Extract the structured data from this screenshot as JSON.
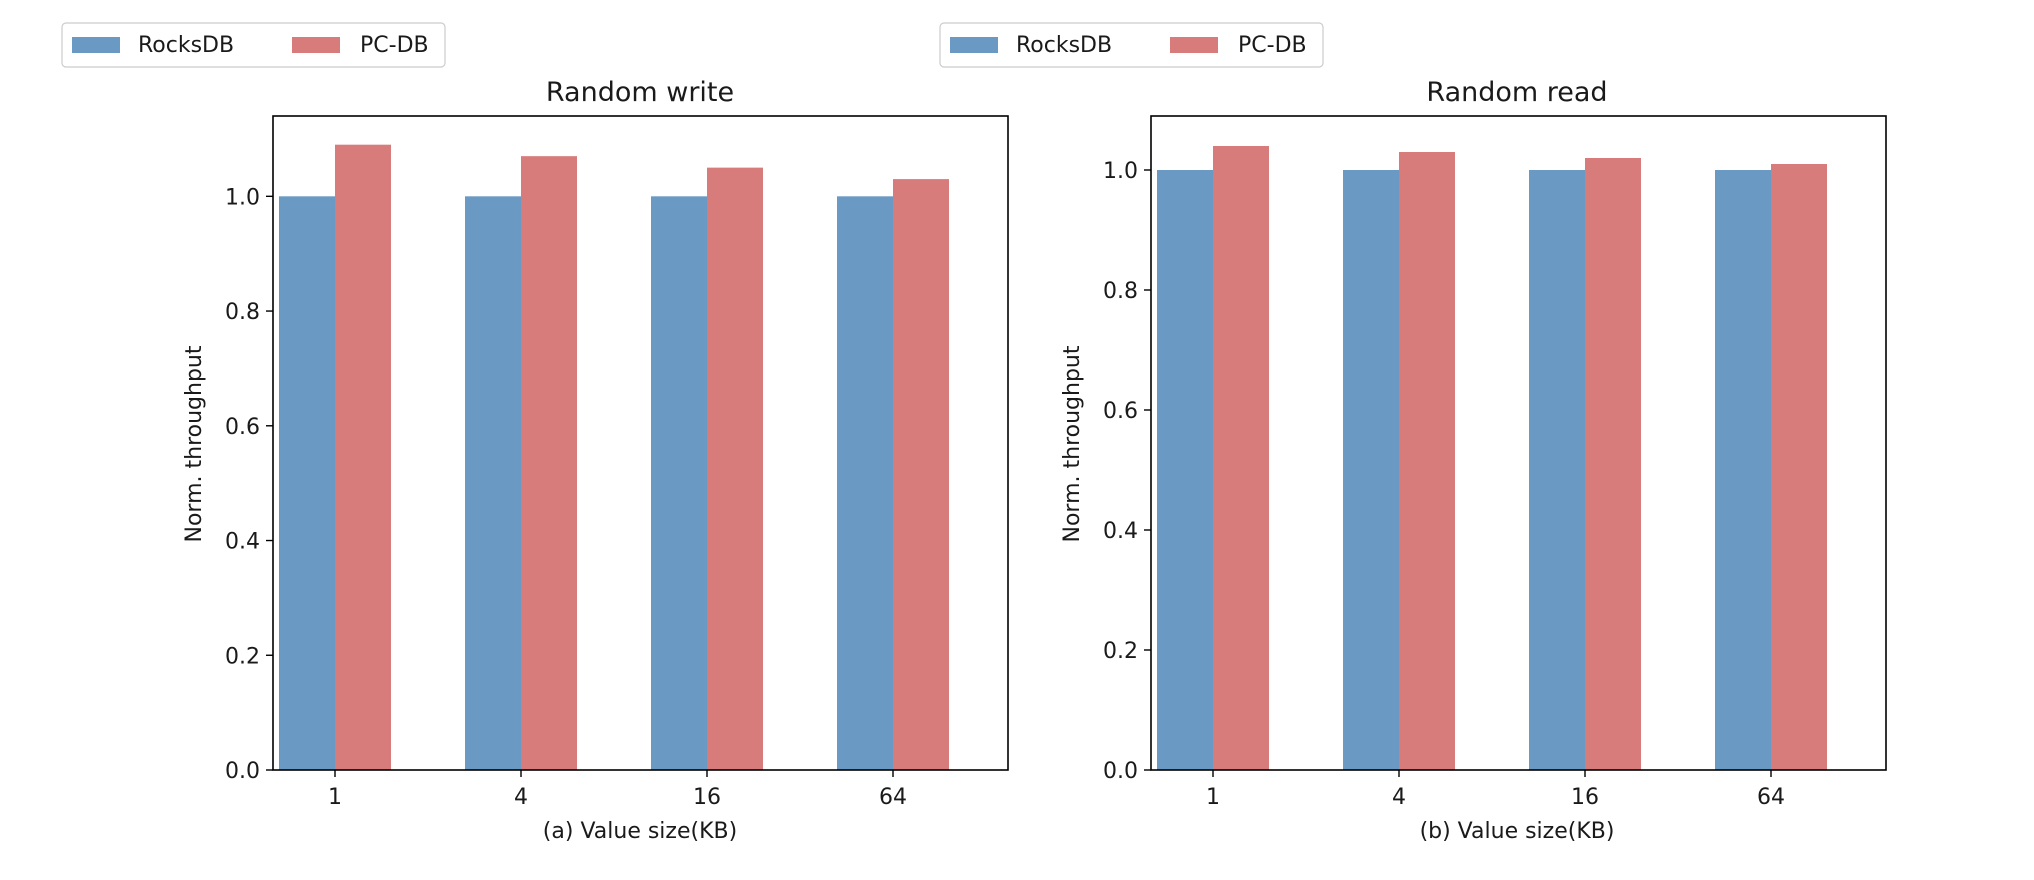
{
  "colors": {
    "rocksdb": "#6a9ac4",
    "pcdb": "#d77b7b",
    "axis": "#000000"
  },
  "chart_data": [
    {
      "type": "bar",
      "title": "Random write",
      "xlabel": "(a) Value size(KB)",
      "ylabel": "Norm. throughput",
      "categories": [
        "1",
        "4",
        "16",
        "64"
      ],
      "ylim": [
        0,
        1.14
      ],
      "yticks": [
        0.0,
        0.2,
        0.4,
        0.6,
        0.8,
        1.0
      ],
      "legend": {
        "placement": "top-left",
        "entries": [
          "RocksDB",
          "PC-DB"
        ]
      },
      "grid": false,
      "series": [
        {
          "name": "RocksDB",
          "values": [
            1.0,
            1.0,
            1.0,
            1.0
          ]
        },
        {
          "name": "PC-DB",
          "values": [
            1.09,
            1.07,
            1.05,
            1.03
          ]
        }
      ]
    },
    {
      "type": "bar",
      "title": "Random read",
      "xlabel": "(b) Value size(KB)",
      "ylabel": "Norm. throughput",
      "categories": [
        "1",
        "4",
        "16",
        "64"
      ],
      "ylim": [
        0,
        1.09
      ],
      "yticks": [
        0.0,
        0.2,
        0.4,
        0.6,
        0.8,
        1.0
      ],
      "legend": {
        "placement": "top-left",
        "entries": [
          "RocksDB",
          "PC-DB"
        ]
      },
      "grid": false,
      "series": [
        {
          "name": "RocksDB",
          "values": [
            1.0,
            1.0,
            1.0,
            1.0
          ]
        },
        {
          "name": "PC-DB",
          "values": [
            1.04,
            1.03,
            1.02,
            1.01
          ]
        }
      ]
    }
  ]
}
